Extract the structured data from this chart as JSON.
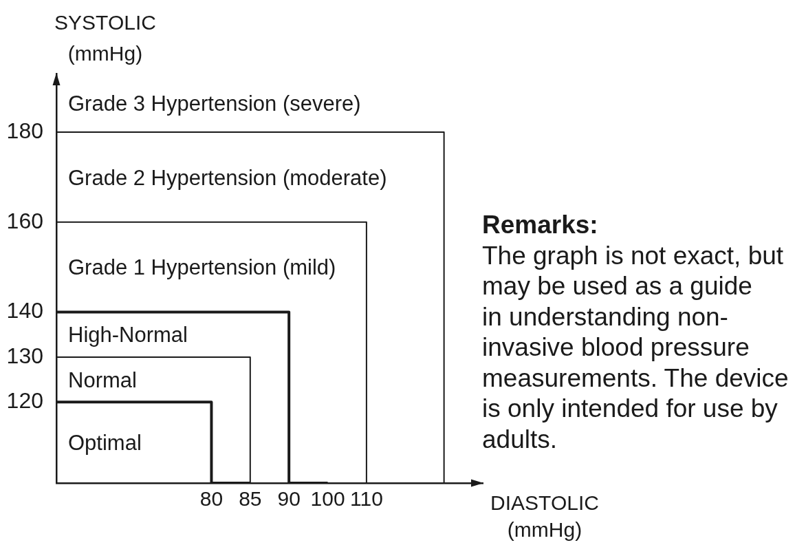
{
  "chart_data": {
    "type": "step",
    "xlabel": "DIASTOLIC (mmHg)",
    "ylabel": "SYSTOLIC (mmHg)",
    "categories": [
      null,
      null,
      null,
      null,
      "80",
      "85",
      "90",
      "100",
      "110",
      null,
      null,
      null
    ],
    "series": [
      {
        "color": "#1a1a1a",
        "values": [
          120,
          120,
          120,
          120,
          120,
          102,
          null,
          null,
          null,
          null,
          null,
          null
        ]
      },
      {
        "color": "#1a1a1a",
        "values": [
          130,
          130,
          130,
          130,
          130,
          130,
          102,
          null,
          null,
          null,
          null,
          null
        ]
      },
      {
        "color": "#1a1a1a",
        "values": [
          140,
          140,
          140,
          140,
          140,
          140,
          140,
          102,
          null,
          null,
          null,
          null
        ]
      },
      {
        "color": "#1a1a1a",
        "values": [
          160,
          160,
          160,
          160,
          160,
          160,
          160,
          160,
          160,
          102,
          null,
          null
        ]
      },
      {
        "color": "#1a1a1a",
        "values": [
          180,
          180,
          180,
          180,
          180,
          180,
          180,
          180,
          180,
          180,
          180,
          102
        ]
      }
    ],
    "ylim": [
      102,
      193
    ],
    "yticks": [
      120,
      130,
      140,
      160,
      180
    ],
    "annotations": [
      "Grade 3 Hypertension (severe)",
      "Grade 2 Hypertension (moderate)",
      "Grade 1 Hypertension (mild)",
      "High-Normal",
      "Normal",
      "Optimal",
      "Remarks:",
      "The graph is not exact, but\nmay be used as a guide\nin understanding non-\ninvasive blood pressure\nmeasurements. The device\nis only intended for use by\nadults."
    ]
  }
}
